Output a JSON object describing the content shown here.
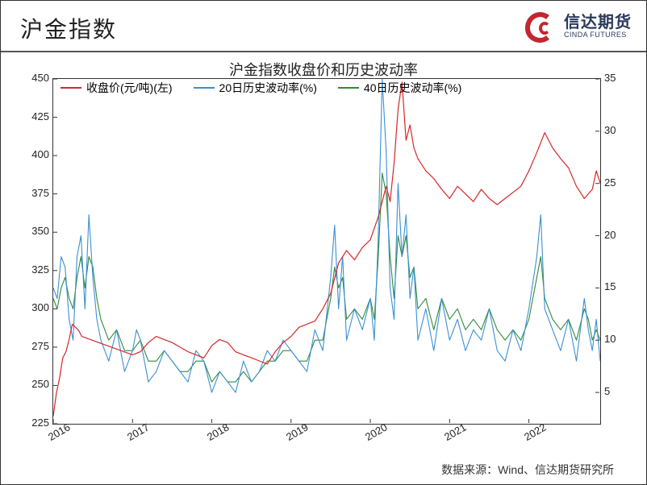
{
  "header": {
    "title": "沪金指数",
    "logo_cn": "信达期货",
    "logo_en": "CINDA FUTURES"
  },
  "chart": {
    "title": "沪金指数收盘价和历史波动率",
    "type": "line",
    "background_color": "#ffffff",
    "border_color": "#333333",
    "title_fontsize": 18,
    "label_fontsize": 13,
    "legend": [
      {
        "label": "收盘价(元/吨)(左)",
        "color": "#d62728"
      },
      {
        "label": "20日历史波动率(%)",
        "color": "#3b8fd4"
      },
      {
        "label": "40日历史波动率(%)",
        "color": "#2f8b3a"
      }
    ],
    "x_labels": [
      "2016",
      "2017",
      "2018",
      "2019",
      "2020",
      "2021",
      "2022"
    ],
    "y_left": {
      "min": 225,
      "max": 450,
      "step": 25,
      "ticks": [
        225,
        250,
        275,
        300,
        325,
        350,
        375,
        400,
        425,
        450
      ]
    },
    "y_right": {
      "min": 2,
      "max": 35,
      "ticks": [
        5,
        10,
        15,
        20,
        25,
        30,
        35
      ]
    },
    "series": {
      "close_price": {
        "axis": "left",
        "color": "#d62728",
        "line_width": 1.2,
        "data": [
          [
            0,
            230
          ],
          [
            0.04,
            245
          ],
          [
            0.08,
            255
          ],
          [
            0.12,
            268
          ],
          [
            0.16,
            272
          ],
          [
            0.2,
            280
          ],
          [
            0.24,
            290
          ],
          [
            0.28,
            288
          ],
          [
            0.32,
            286
          ],
          [
            0.36,
            282
          ],
          [
            1,
            270
          ],
          [
            1.1,
            272
          ],
          [
            1.2,
            278
          ],
          [
            1.3,
            282
          ],
          [
            1.4,
            280
          ],
          [
            1.5,
            278
          ],
          [
            1.6,
            275
          ],
          [
            1.7,
            272
          ],
          [
            1.8,
            270
          ],
          [
            1.9,
            268
          ],
          [
            2,
            276
          ],
          [
            2.1,
            280
          ],
          [
            2.2,
            278
          ],
          [
            2.3,
            272
          ],
          [
            2.4,
            270
          ],
          [
            2.5,
            268
          ],
          [
            2.6,
            266
          ],
          [
            2.7,
            264
          ],
          [
            2.8,
            272
          ],
          [
            2.9,
            278
          ],
          [
            3,
            282
          ],
          [
            3.1,
            288
          ],
          [
            3.2,
            290
          ],
          [
            3.3,
            292
          ],
          [
            3.4,
            300
          ],
          [
            3.5,
            310
          ],
          [
            3.6,
            330
          ],
          [
            3.7,
            338
          ],
          [
            3.8,
            332
          ],
          [
            3.9,
            340
          ],
          [
            4,
            345
          ],
          [
            4.1,
            360
          ],
          [
            4.2,
            380
          ],
          [
            4.25,
            370
          ],
          [
            4.3,
            395
          ],
          [
            4.35,
            430
          ],
          [
            4.4,
            448
          ],
          [
            4.45,
            410
          ],
          [
            4.5,
            420
          ],
          [
            4.55,
            405
          ],
          [
            4.6,
            398
          ],
          [
            4.7,
            390
          ],
          [
            4.8,
            385
          ],
          [
            4.9,
            378
          ],
          [
            5,
            372
          ],
          [
            5.1,
            380
          ],
          [
            5.2,
            375
          ],
          [
            5.3,
            370
          ],
          [
            5.4,
            378
          ],
          [
            5.5,
            372
          ],
          [
            5.6,
            368
          ],
          [
            5.7,
            372
          ],
          [
            5.8,
            376
          ],
          [
            5.9,
            380
          ],
          [
            6,
            390
          ],
          [
            6.1,
            402
          ],
          [
            6.2,
            415
          ],
          [
            6.3,
            405
          ],
          [
            6.4,
            398
          ],
          [
            6.5,
            392
          ],
          [
            6.6,
            380
          ],
          [
            6.7,
            372
          ],
          [
            6.8,
            378
          ],
          [
            6.85,
            390
          ],
          [
            6.9,
            382
          ]
        ]
      },
      "vol20": {
        "axis": "right",
        "color": "#3b8fd4",
        "line_width": 1.1,
        "data": [
          [
            0,
            15
          ],
          [
            0.05,
            14
          ],
          [
            0.1,
            18
          ],
          [
            0.15,
            17
          ],
          [
            0.2,
            12
          ],
          [
            0.25,
            10
          ],
          [
            0.3,
            18
          ],
          [
            0.35,
            20
          ],
          [
            0.4,
            13
          ],
          [
            0.45,
            22
          ],
          [
            0.5,
            16
          ],
          [
            0.55,
            12
          ],
          [
            0.6,
            10
          ],
          [
            0.7,
            8
          ],
          [
            0.8,
            11
          ],
          [
            0.9,
            7
          ],
          [
            1,
            9
          ],
          [
            1.05,
            11
          ],
          [
            1.1,
            10
          ],
          [
            1.15,
            8
          ],
          [
            1.2,
            6
          ],
          [
            1.3,
            7
          ],
          [
            1.4,
            9
          ],
          [
            1.5,
            8
          ],
          [
            1.6,
            7
          ],
          [
            1.7,
            6
          ],
          [
            1.8,
            9
          ],
          [
            1.9,
            8
          ],
          [
            2,
            5
          ],
          [
            2.1,
            7
          ],
          [
            2.2,
            6
          ],
          [
            2.3,
            5
          ],
          [
            2.4,
            8
          ],
          [
            2.5,
            6
          ],
          [
            2.6,
            7
          ],
          [
            2.7,
            9
          ],
          [
            2.8,
            8
          ],
          [
            2.9,
            10
          ],
          [
            3,
            9
          ],
          [
            3.1,
            8
          ],
          [
            3.2,
            7
          ],
          [
            3.3,
            11
          ],
          [
            3.4,
            9
          ],
          [
            3.5,
            16
          ],
          [
            3.55,
            21
          ],
          [
            3.6,
            13
          ],
          [
            3.65,
            18
          ],
          [
            3.7,
            10
          ],
          [
            3.8,
            13
          ],
          [
            3.9,
            11
          ],
          [
            4,
            14
          ],
          [
            4.05,
            10
          ],
          [
            4.1,
            20
          ],
          [
            4.15,
            35
          ],
          [
            4.2,
            28
          ],
          [
            4.25,
            15
          ],
          [
            4.3,
            12
          ],
          [
            4.35,
            25
          ],
          [
            4.4,
            18
          ],
          [
            4.45,
            22
          ],
          [
            4.5,
            14
          ],
          [
            4.55,
            17
          ],
          [
            4.6,
            10
          ],
          [
            4.7,
            13
          ],
          [
            4.8,
            9
          ],
          [
            4.9,
            14
          ],
          [
            5,
            10
          ],
          [
            5.1,
            12
          ],
          [
            5.2,
            9
          ],
          [
            5.3,
            11
          ],
          [
            5.4,
            10
          ],
          [
            5.5,
            13
          ],
          [
            5.6,
            9
          ],
          [
            5.7,
            8
          ],
          [
            5.8,
            11
          ],
          [
            5.9,
            9
          ],
          [
            6,
            13
          ],
          [
            6.1,
            18
          ],
          [
            6.15,
            22
          ],
          [
            6.2,
            13
          ],
          [
            6.3,
            11
          ],
          [
            6.4,
            9
          ],
          [
            6.5,
            12
          ],
          [
            6.6,
            8
          ],
          [
            6.7,
            14
          ],
          [
            6.75,
            11
          ],
          [
            6.8,
            9
          ],
          [
            6.85,
            12
          ],
          [
            6.9,
            8
          ]
        ]
      },
      "vol40": {
        "axis": "right",
        "color": "#2f8b3a",
        "line_width": 1.1,
        "data": [
          [
            0,
            14
          ],
          [
            0.05,
            13
          ],
          [
            0.1,
            15
          ],
          [
            0.15,
            16
          ],
          [
            0.2,
            14
          ],
          [
            0.25,
            13
          ],
          [
            0.3,
            16
          ],
          [
            0.35,
            18
          ],
          [
            0.4,
            15
          ],
          [
            0.45,
            18
          ],
          [
            0.5,
            17
          ],
          [
            0.55,
            14
          ],
          [
            0.6,
            12
          ],
          [
            0.7,
            10
          ],
          [
            0.8,
            11
          ],
          [
            0.9,
            9
          ],
          [
            1,
            9
          ],
          [
            1.1,
            10
          ],
          [
            1.2,
            8
          ],
          [
            1.3,
            8
          ],
          [
            1.4,
            9
          ],
          [
            1.5,
            8
          ],
          [
            1.6,
            7
          ],
          [
            1.7,
            7
          ],
          [
            1.8,
            8
          ],
          [
            1.9,
            8
          ],
          [
            2,
            6
          ],
          [
            2.1,
            7
          ],
          [
            2.2,
            6
          ],
          [
            2.3,
            6
          ],
          [
            2.4,
            7
          ],
          [
            2.5,
            6
          ],
          [
            2.6,
            7
          ],
          [
            2.7,
            8
          ],
          [
            2.8,
            8
          ],
          [
            2.9,
            9
          ],
          [
            3,
            9
          ],
          [
            3.1,
            8
          ],
          [
            3.2,
            8
          ],
          [
            3.3,
            10
          ],
          [
            3.4,
            10
          ],
          [
            3.5,
            14
          ],
          [
            3.55,
            17
          ],
          [
            3.6,
            15
          ],
          [
            3.65,
            16
          ],
          [
            3.7,
            12
          ],
          [
            3.8,
            13
          ],
          [
            3.9,
            12
          ],
          [
            4,
            14
          ],
          [
            4.05,
            12
          ],
          [
            4.1,
            18
          ],
          [
            4.15,
            26
          ],
          [
            4.2,
            24
          ],
          [
            4.25,
            18
          ],
          [
            4.3,
            14
          ],
          [
            4.35,
            20
          ],
          [
            4.4,
            18
          ],
          [
            4.45,
            20
          ],
          [
            4.5,
            16
          ],
          [
            4.55,
            17
          ],
          [
            4.6,
            13
          ],
          [
            4.7,
            14
          ],
          [
            4.8,
            11
          ],
          [
            4.9,
            14
          ],
          [
            5,
            12
          ],
          [
            5.1,
            13
          ],
          [
            5.2,
            11
          ],
          [
            5.3,
            12
          ],
          [
            5.4,
            11
          ],
          [
            5.5,
            13
          ],
          [
            5.6,
            11
          ],
          [
            5.7,
            10
          ],
          [
            5.8,
            11
          ],
          [
            5.9,
            10
          ],
          [
            6,
            12
          ],
          [
            6.1,
            16
          ],
          [
            6.15,
            18
          ],
          [
            6.2,
            14
          ],
          [
            6.3,
            12
          ],
          [
            6.4,
            11
          ],
          [
            6.5,
            12
          ],
          [
            6.6,
            10
          ],
          [
            6.7,
            13
          ],
          [
            6.75,
            12
          ],
          [
            6.8,
            10
          ],
          [
            6.85,
            11
          ],
          [
            6.9,
            10
          ]
        ]
      }
    },
    "x_domain": [
      0,
      6.9
    ]
  },
  "footer": {
    "source": "数据来源：Wind、信达期货研究所"
  }
}
